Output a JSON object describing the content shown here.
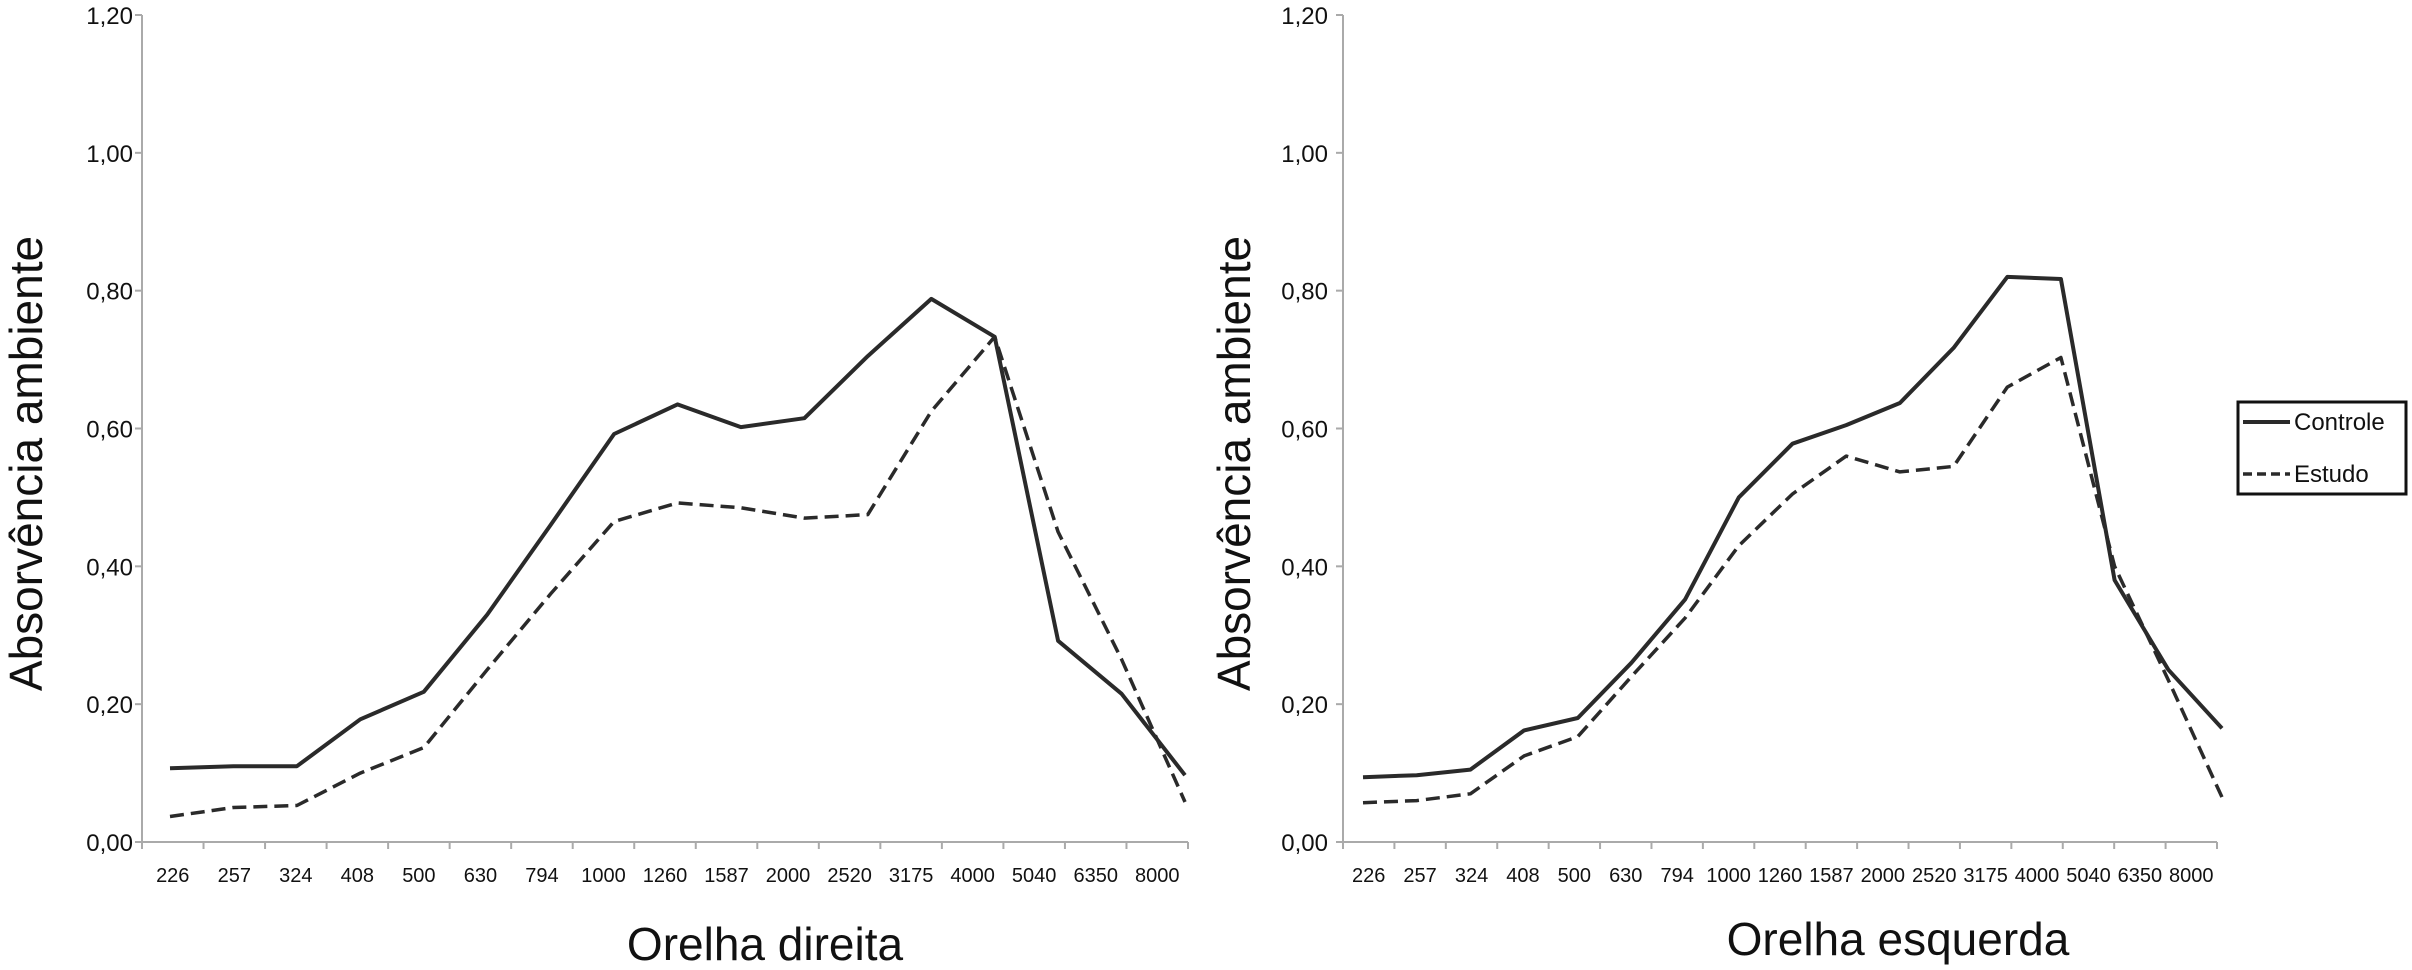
{
  "legend": {
    "position": "right",
    "entries": [
      {
        "label": "Controle",
        "style": "solid"
      },
      {
        "label": "Estudo",
        "style": "dashed"
      }
    ]
  },
  "chart_data": [
    {
      "type": "line",
      "xlabel": "Orelha direita",
      "ylabel": "Absorvência ambiente",
      "ylim": [
        0,
        1.2
      ],
      "yticks": [
        "0,00",
        "0,20",
        "0,40",
        "0,60",
        "0,80",
        "1,00",
        "1,20"
      ],
      "categories": [
        "226",
        "257",
        "324",
        "408",
        "500",
        "630",
        "794",
        "1000",
        "1260",
        "1587",
        "2000",
        "2520",
        "3175",
        "4000",
        "5040",
        "6350",
        "8000"
      ],
      "grid": false,
      "series": [
        {
          "name": "Controle",
          "values": [
            0.107,
            0.11,
            0.11,
            0.178,
            0.218,
            0.33,
            0.46,
            0.592,
            0.635,
            0.602,
            0.615,
            0.705,
            0.788,
            0.733,
            0.292,
            0.215,
            0.097
          ]
        },
        {
          "name": "Estudo",
          "values": [
            0.037,
            0.05,
            0.053,
            0.1,
            0.137,
            0.25,
            0.36,
            0.465,
            0.492,
            0.485,
            0.47,
            0.475,
            0.625,
            0.733,
            0.45,
            0.265,
            0.058
          ]
        }
      ]
    },
    {
      "type": "line",
      "xlabel": "Orelha esquerda",
      "ylabel": "Absorvência ambiente",
      "ylim": [
        0,
        1.2
      ],
      "yticks": [
        "0,00",
        "0,20",
        "0,40",
        "0,60",
        "0,80",
        "1,00",
        "1,20"
      ],
      "categories": [
        "226",
        "257",
        "324",
        "408",
        "500",
        "630",
        "794",
        "1000",
        "1260",
        "1587",
        "2000",
        "2520",
        "3175",
        "4000",
        "5040",
        "6350",
        "8000"
      ],
      "grid": false,
      "series": [
        {
          "name": "Controle",
          "values": [
            0.094,
            0.097,
            0.105,
            0.162,
            0.18,
            0.26,
            0.352,
            0.5,
            0.578,
            0.605,
            0.637,
            0.717,
            0.82,
            0.817,
            0.38,
            0.25,
            0.165
          ]
        },
        {
          "name": "Estudo",
          "values": [
            0.057,
            0.06,
            0.07,
            0.125,
            0.153,
            0.24,
            0.325,
            0.43,
            0.505,
            0.56,
            0.537,
            0.545,
            0.66,
            0.703,
            0.4,
            0.235,
            0.065
          ]
        }
      ]
    }
  ]
}
